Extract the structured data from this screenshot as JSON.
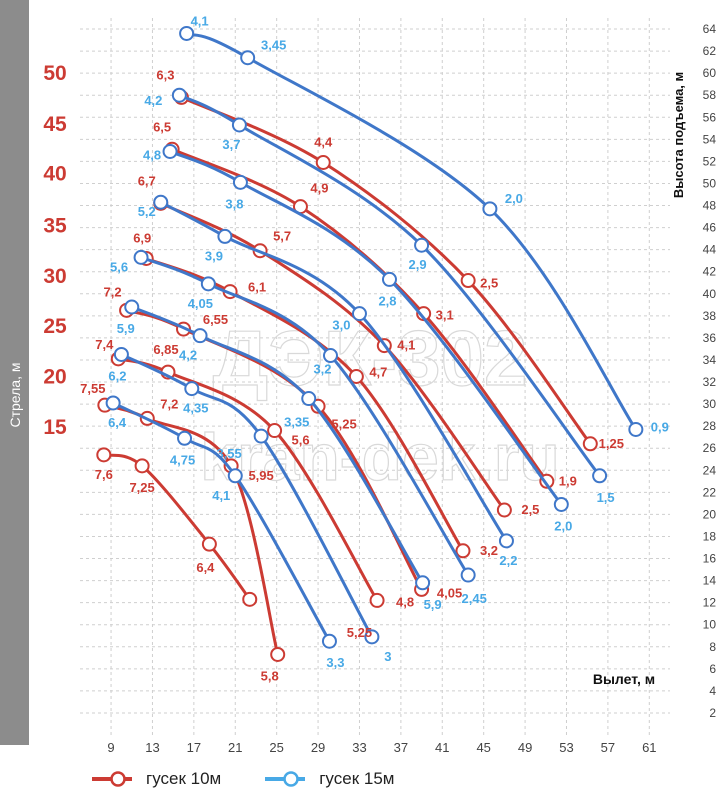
{
  "chart_data": {
    "type": "line",
    "title": "",
    "xlabel": "Вылет, м",
    "ylabel": "Высота подъема, м",
    "boom_label": "Стрела, м",
    "xlim": [
      6,
      63
    ],
    "ylim": [
      0,
      65
    ],
    "x_ticks": [
      9,
      13,
      17,
      21,
      25,
      29,
      33,
      37,
      41,
      45,
      49,
      53,
      57,
      61
    ],
    "y_ticks": [
      2,
      4,
      6,
      8,
      10,
      12,
      14,
      16,
      18,
      20,
      22,
      24,
      26,
      28,
      30,
      32,
      34,
      36,
      38,
      40,
      42,
      44,
      46,
      48,
      50,
      52,
      54,
      56,
      58,
      60,
      62,
      64
    ],
    "grid": true,
    "legend_position": "bottom",
    "colors": {
      "jib10": "#cc3b33",
      "jib15": "#3f77c9",
      "bar": "#8c8c8c",
      "grid": "#cfcfcf"
    },
    "watermark": [
      "ДЭК-302",
      "kran-dek.ru"
    ],
    "boom_lengths": [
      {
        "label": "50",
        "y": 60
      },
      {
        "label": "45",
        "y": 55.4
      },
      {
        "label": "40",
        "y": 50.9
      },
      {
        "label": "35",
        "y": 46.2
      },
      {
        "label": "30",
        "y": 41.6
      },
      {
        "label": "25",
        "y": 37.1
      },
      {
        "label": "20",
        "y": 32.5
      },
      {
        "label": "15",
        "y": 27.9
      }
    ],
    "series": [
      {
        "name": "гусек 10м",
        "colorKey": "jib10",
        "boom": "50",
        "points": [
          {
            "x": 15.8,
            "y": 57.8,
            "label": "6,3",
            "ldx": -16,
            "ldy": -22,
            "lcolor": "jib10"
          },
          {
            "x": 29.5,
            "y": 51.9,
            "label": "4,4",
            "ldx": 0,
            "ldy": -20,
            "lcolor": "jib10"
          },
          {
            "x": 43.5,
            "y": 41.2,
            "label": "2,5",
            "ldx": 21,
            "ldy": 3,
            "lcolor": "jib10"
          },
          {
            "x": 55.3,
            "y": 26.4,
            "label": "1,25",
            "ldx": 21,
            "ldy": 0,
            "lcolor": "jib10"
          }
        ]
      },
      {
        "name": "гусек 15м",
        "colorKey": "jib15",
        "boom": "50",
        "points": [
          {
            "x": 16.3,
            "y": 63.6,
            "label": "4,1",
            "ldx": 13,
            "ldy": -12,
            "lcolor": "jib15"
          },
          {
            "x": 22.2,
            "y": 61.4,
            "label": "3,45",
            "ldx": 26,
            "ldy": -12,
            "lcolor": "jib15"
          },
          {
            "x": 45.6,
            "y": 47.7,
            "label": "2,0",
            "ldx": 24,
            "ldy": -10,
            "lcolor": "jib15"
          },
          {
            "x": 59.7,
            "y": 27.7,
            "label": "0,9",
            "ldx": 24,
            "ldy": -2,
            "lcolor": "jib15"
          }
        ]
      },
      {
        "name": "гусек 10м",
        "colorKey": "jib10",
        "boom": "45",
        "points": [
          {
            "x": 14.9,
            "y": 53.1,
            "label": "6,5",
            "ldx": -10,
            "ldy": -22,
            "lcolor": "jib10"
          },
          {
            "x": 27.3,
            "y": 47.9,
            "label": "4,9",
            "ldx": 19,
            "ldy": -18,
            "lcolor": "jib10"
          },
          {
            "x": 39.2,
            "y": 38.2,
            "label": "3,1",
            "ldx": 21,
            "ldy": 2,
            "lcolor": "jib10"
          },
          {
            "x": 51.1,
            "y": 23.0,
            "label": "1,9",
            "ldx": 21,
            "ldy": 0,
            "lcolor": "jib10"
          }
        ]
      },
      {
        "name": "гусек 15м",
        "colorKey": "jib15",
        "boom": "45",
        "points": [
          {
            "x": 15.6,
            "y": 58.0,
            "label": "4,2",
            "ldx": -26,
            "ldy": 6,
            "lcolor": "jib15"
          },
          {
            "x": 21.4,
            "y": 55.3,
            "label": "3,7",
            "ldx": -8,
            "ldy": 20,
            "lcolor": "jib15"
          },
          {
            "x": 39.0,
            "y": 44.4,
            "label": "2,9",
            "ldx": -4,
            "ldy": 20,
            "lcolor": "jib15"
          },
          {
            "x": 56.2,
            "y": 23.5,
            "label": "1,5",
            "ldx": 6,
            "ldy": 22,
            "lcolor": "jib15"
          }
        ]
      },
      {
        "name": "гусек 10м",
        "colorKey": "jib10",
        "boom": "40",
        "points": [
          {
            "x": 13.8,
            "y": 48.2,
            "label": "6,7",
            "ldx": -14,
            "ldy": -22,
            "lcolor": "jib10"
          },
          {
            "x": 23.4,
            "y": 43.9,
            "label": "5,7",
            "ldx": 22,
            "ldy": -14,
            "lcolor": "jib10"
          },
          {
            "x": 35.4,
            "y": 35.3,
            "label": "4,1",
            "ldx": 22,
            "ldy": 0,
            "lcolor": "jib10"
          },
          {
            "x": 47.0,
            "y": 20.4,
            "label": "2,5",
            "ldx": 26,
            "ldy": 0,
            "lcolor": "jib10"
          }
        ]
      },
      {
        "name": "гусек 15м",
        "colorKey": "jib15",
        "boom": "40",
        "points": [
          {
            "x": 14.7,
            "y": 52.9,
            "label": "4,8",
            "ldx": -18,
            "ldy": 4,
            "lcolor": "jib15"
          },
          {
            "x": 21.5,
            "y": 50.1,
            "label": "3,8",
            "ldx": -6,
            "ldy": 22,
            "lcolor": "jib15"
          },
          {
            "x": 35.9,
            "y": 41.3,
            "label": "2,8",
            "ldx": -2,
            "ldy": 22,
            "lcolor": "jib15"
          },
          {
            "x": 52.5,
            "y": 20.9,
            "label": "2,0",
            "ldx": 2,
            "ldy": 22,
            "lcolor": "jib15"
          }
        ]
      },
      {
        "name": "гусек 10м",
        "colorKey": "jib10",
        "boom": "35",
        "points": [
          {
            "x": 12.4,
            "y": 43.2,
            "label": "6,9",
            "ldx": -4,
            "ldy": -20,
            "lcolor": "jib10"
          },
          {
            "x": 20.5,
            "y": 40.2,
            "label": "6,1",
            "ldx": 27,
            "ldy": -4,
            "lcolor": "jib10"
          },
          {
            "x": 32.7,
            "y": 32.5,
            "label": "4,7",
            "ldx": 22,
            "ldy": -4,
            "lcolor": "jib10"
          },
          {
            "x": 43.0,
            "y": 16.7,
            "label": "3,2",
            "ldx": 26,
            "ldy": 0,
            "lcolor": "jib10"
          }
        ]
      },
      {
        "name": "гусек 15м",
        "colorKey": "jib15",
        "boom": "35",
        "points": [
          {
            "x": 13.8,
            "y": 48.3,
            "label": "5,2",
            "ldx": -14,
            "ldy": 10,
            "lcolor": "jib15"
          },
          {
            "x": 20.0,
            "y": 45.2,
            "label": "3,9",
            "ldx": -11,
            "ldy": 20,
            "lcolor": "jib15"
          },
          {
            "x": 33.0,
            "y": 38.2,
            "label": "3,0",
            "ldx": -18,
            "ldy": 12,
            "lcolor": "jib15"
          },
          {
            "x": 47.2,
            "y": 17.6,
            "label": "2,2",
            "ldx": 2,
            "ldy": 20,
            "lcolor": "jib15"
          }
        ]
      },
      {
        "name": "гусек 10м",
        "colorKey": "jib10",
        "boom": "30",
        "points": [
          {
            "x": 10.5,
            "y": 38.5,
            "label": "7,2",
            "ldx": -14,
            "ldy": -18,
            "lcolor": "jib10"
          },
          {
            "x": 16.0,
            "y": 36.8,
            "label": "6,55",
            "ldx": 32,
            "ldy": -9,
            "lcolor": "jib10"
          },
          {
            "x": 29.0,
            "y": 29.8,
            "label": "5,25",
            "ldx": 26,
            "ldy": 18,
            "lcolor": "jib10"
          },
          {
            "x": 39.0,
            "y": 13.2,
            "label": "4,05",
            "ldx": 28,
            "ldy": 4,
            "lcolor": "jib10"
          }
        ]
      },
      {
        "name": "гусек 15м",
        "colorKey": "jib15",
        "boom": "35_top",
        "points": [
          {
            "x": 11.9,
            "y": 43.3,
            "label": "5,6",
            "ldx": -22,
            "ldy": 10,
            "lcolor": "jib15"
          },
          {
            "x": 18.4,
            "y": 40.9,
            "label": "4,05",
            "ldx": -8,
            "ldy": 20,
            "lcolor": "jib15"
          },
          {
            "x": 30.2,
            "y": 34.4,
            "label": "3,2",
            "ldx": -8,
            "ldy": 14,
            "lcolor": "jib15"
          },
          {
            "x": 43.5,
            "y": 14.5,
            "label": "2,45",
            "ldx": 6,
            "ldy": 24,
            "lcolor": "jib15"
          }
        ]
      },
      {
        "name": "гусек 10м",
        "colorKey": "jib10",
        "boom": "25",
        "points": [
          {
            "x": 9.7,
            "y": 34.1,
            "label": "7,4",
            "ldx": -14,
            "ldy": -14,
            "lcolor": "jib10"
          },
          {
            "x": 14.5,
            "y": 32.9,
            "label": "6,85",
            "ldx": -2,
            "ldy": -22,
            "lcolor": "jib10"
          },
          {
            "x": 24.8,
            "y": 27.6,
            "label": "5,6",
            "ldx": 26,
            "ldy": 10,
            "lcolor": "jib10"
          },
          {
            "x": 34.7,
            "y": 12.2,
            "label": "4,8",
            "ldx": 28,
            "ldy": 2,
            "lcolor": "jib10"
          }
        ]
      },
      {
        "name": "гусек 15м",
        "colorKey": "jib15",
        "boom": "30",
        "points": [
          {
            "x": 11.0,
            "y": 38.8,
            "label": "5,9",
            "ldx": -6,
            "ldy": 22,
            "lcolor": "jib15"
          },
          {
            "x": 17.6,
            "y": 36.2,
            "label": "4,2",
            "ldx": -12,
            "ldy": 20,
            "lcolor": "jib15"
          },
          {
            "x": 28.1,
            "y": 30.5,
            "label": "3,35",
            "ldx": -12,
            "ldy": 24,
            "lcolor": "jib15"
          },
          {
            "x": 39.1,
            "y": 13.8,
            "label": "5,9",
            "ldx": 10,
            "ldy": 22,
            "lcolor": "jib15"
          }
        ]
      },
      {
        "name": "гусек 10м",
        "colorKey": "jib10",
        "boom": "20",
        "points": [
          {
            "x": 8.4,
            "y": 29.9,
            "label": "7,55",
            "ldx": -12,
            "ldy": -16,
            "lcolor": "jib10"
          },
          {
            "x": 12.5,
            "y": 28.7,
            "label": "7,2",
            "ldx": 22,
            "ldy": -14,
            "lcolor": "jib10"
          },
          {
            "x": 20.6,
            "y": 24.4,
            "label": "5,95",
            "ldx": 30,
            "ldy": 10,
            "lcolor": "jib10"
          },
          {
            "x": 25.1,
            "y": 7.3,
            "label": "5,8",
            "ldx": -8,
            "ldy": 22,
            "lcolor": "jib10"
          }
        ]
      },
      {
        "name": "гусек 15м",
        "colorKey": "jib15",
        "boom": "25",
        "points": [
          {
            "x": 10.0,
            "y": 34.5,
            "label": "6,2",
            "ldx": -4,
            "ldy": 22,
            "lcolor": "jib15"
          },
          {
            "x": 16.8,
            "y": 31.4,
            "label": "4,35",
            "ldx": 4,
            "ldy": 20,
            "lcolor": "jib15"
          },
          {
            "x": 23.5,
            "y": 27.1,
            "label": "3,55",
            "ldx": -32,
            "ldy": 18,
            "lcolor": "jib15"
          },
          {
            "x": 34.2,
            "y": 8.9,
            "label": "3",
            "ldx": 16,
            "ldy": 20,
            "lcolor": "jib15"
          }
        ]
      },
      {
        "name": "гусек 10м",
        "colorKey": "jib10",
        "boom": "15",
        "points": [
          {
            "x": 8.3,
            "y": 25.4,
            "label": "7,6",
            "ldx": 0,
            "ldy": 20,
            "lcolor": "jib10"
          },
          {
            "x": 12.0,
            "y": 24.4,
            "label": "7,25",
            "ldx": 0,
            "ldy": 22,
            "lcolor": "jib10"
          },
          {
            "x": 18.5,
            "y": 17.3,
            "label": "6,4",
            "ldx": -4,
            "ldy": 24,
            "lcolor": "jib10"
          },
          {
            "x": 22.4,
            "y": 12.3,
            "label": "",
            "ldx": 0,
            "ldy": 0,
            "lcolor": "jib10"
          }
        ]
      },
      {
        "name": "гусек 15м",
        "colorKey": "jib15",
        "boom": "20",
        "points": [
          {
            "x": 9.2,
            "y": 30.1,
            "label": "6,4",
            "ldx": 4,
            "ldy": 20,
            "lcolor": "jib15"
          },
          {
            "x": 16.1,
            "y": 26.9,
            "label": "4,75",
            "ldx": -2,
            "ldy": 22,
            "lcolor": "jib15"
          },
          {
            "x": 21.0,
            "y": 23.5,
            "label": "4,1",
            "ldx": -14,
            "ldy": 20,
            "lcolor": "jib15"
          },
          {
            "x": 30.1,
            "y": 8.5,
            "label": "5,25",
            "ldx": 30,
            "ldy": -8,
            "lcolor": "jib10"
          }
        ]
      }
    ],
    "extra_labels": [
      {
        "x": 30.1,
        "y": 8.5,
        "label": "3,3",
        "ldx": 6,
        "ldy": 22,
        "lcolor": "jib15"
      }
    ],
    "legend": [
      {
        "label": "гусек 10м",
        "colorKey": "jib10"
      },
      {
        "label": "гусек 15м",
        "colorKey": "jib15"
      }
    ]
  }
}
